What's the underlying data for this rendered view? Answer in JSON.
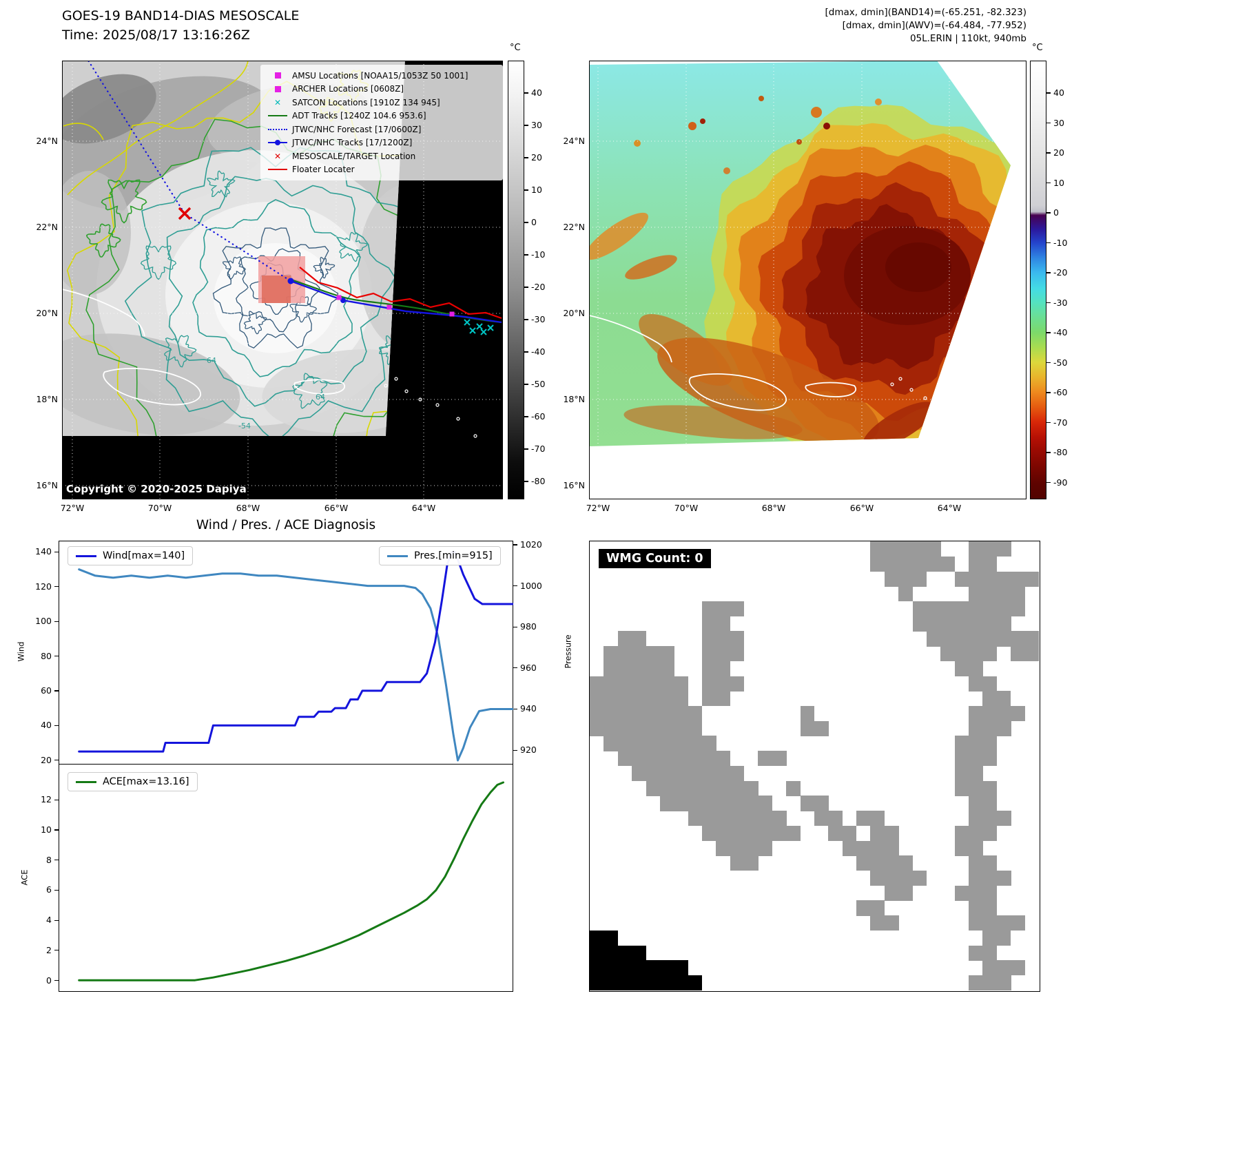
{
  "panels": {
    "band14": {
      "title": "GOES-19 BAND14-DIAS MESOSCALE",
      "time": "Time: 2025/08/17 13:16:26Z",
      "copyright": "Copyright © 2020-2025 Dapiya",
      "contour_labels": [
        "64",
        "64",
        "-54"
      ],
      "lat_ticks": [
        "24°N",
        "22°N",
        "20°N",
        "18°N",
        "16°N"
      ],
      "lon_ticks": [
        "72°W",
        "70°W",
        "68°W",
        "66°W",
        "64°W"
      ],
      "colorbar": {
        "unit": "°C",
        "ticks": [
          40,
          30,
          20,
          10,
          0,
          -10,
          -20,
          -30,
          -40,
          -50,
          -60,
          -70,
          -80
        ]
      },
      "legend": [
        {
          "label": "AMSU Locations [NOAA15/1053Z 50 1001]",
          "marker": "square",
          "color": "#e520e5"
        },
        {
          "label": "ARCHER Locations [0608Z]",
          "marker": "square",
          "color": "#e520e5"
        },
        {
          "label": "SATCON Locations [1910Z 134 945]",
          "marker": "x",
          "color": "#00b8b8"
        },
        {
          "label": "ADT Tracks [1240Z 104.6 953.6]",
          "marker": "line",
          "color": "#157a15"
        },
        {
          "label": "JTWC/NHC Forecast [17/0600Z]",
          "marker": "dotted",
          "color": "#1414e0"
        },
        {
          "label": "JTWC/NHC Tracks [17/1200Z]",
          "marker": "line-dot",
          "color": "#1414e0"
        },
        {
          "label": "MESOSCALE/TARGET Location",
          "marker": "x",
          "color": "#e00000"
        },
        {
          "label": "Floater Locater",
          "marker": "line",
          "color": "#e00000"
        }
      ]
    },
    "awv": {
      "header_lines": [
        "[dmax, dmin](BAND14)=(-65.251, -82.323)",
        "[dmax, dmin](AWV)=(-64.484, -77.952)",
        "05L.ERIN | 110kt, 940mb"
      ],
      "lat_ticks": [
        "24°N",
        "22°N",
        "20°N",
        "18°N",
        "16°N"
      ],
      "lon_ticks": [
        "72°W",
        "70°W",
        "68°W",
        "66°W",
        "64°W"
      ],
      "colorbar": {
        "unit": "°C",
        "ticks": [
          40,
          30,
          20,
          10,
          0,
          -10,
          -20,
          -30,
          -40,
          -50,
          -60,
          -70,
          -80,
          -90
        ]
      }
    },
    "diagnosis": {
      "title": "Wind / Pres. / ACE Diagnosis",
      "wind_axis_label": "Wind",
      "pressure_axis_label": "Pressure",
      "ace_axis_label": "ACE",
      "legend_wind": "Wind[max=140]",
      "legend_pres": "Pres.[min=915]",
      "legend_ace": "ACE[max=13.16]"
    },
    "wmg": {
      "label": "WMG Count: 0",
      "gray": "#9a9a9a",
      "black": "#000000",
      "grid_rows": [
        "....................ggggg..ggg..",
        "....................gggggg.gg...",
        ".....................ggg..gggggg",
        "......................g....gggg.",
        "........ggg............gggggggg.",
        "........gg.............ggggggg..",
        "..gg....ggg.............gggggggg",
        ".ggggg..ggg..............gggg.gg",
        ".ggggg..gg................gg....",
        "ggggggg.ggg................gg...",
        "ggggggg.gg..................gg..",
        "gggggggg.......g...........gggg.",
        "gggggggg.......gg..........ggg..",
        ".gggggggg.................ggg...",
        "..gggggggg..gg............ggg...",
        "...gggggggg...............gg....",
        "....gggggggg..g...........ggg...",
        ".....gggggggg..gg..........gg...",
        ".......ggggggg..gg.gg......ggg..",
        "........ggggggg..gg.gg....ggg...",
        ".........gggg.....gggg....gg....",
        "..........gg.......gggg....gg...",
        "....................gggg...ggg..",
        ".....................gg...ggg...",
        "...................gg......gg...",
        "....................gg.....gggg.",
        "bb..........................gg..",
        "bbbb.......................gg...",
        "bbbbbbb.....................ggg.",
        "bbbbbbbb...................ggg.."
      ]
    }
  },
  "chart_data": [
    {
      "type": "line",
      "title": "Wind / Pres. / ACE Diagnosis",
      "x_range": [
        0,
        1
      ],
      "left_axis": {
        "label": "Wind",
        "ticks": [
          140,
          120,
          100,
          80,
          60,
          40,
          20
        ],
        "lim": [
          17.5,
          146.5
        ]
      },
      "right_axis": {
        "label": "Pressure",
        "ticks": [
          1020,
          1000,
          980,
          960,
          940,
          920
        ],
        "lim": [
          913,
          1022
        ]
      },
      "series": [
        {
          "name": "Wind[max=140]",
          "axis": "left",
          "color": "#1414dc",
          "points": [
            [
              0.045,
              25
            ],
            [
              0.23,
              25
            ],
            [
              0.235,
              30
            ],
            [
              0.33,
              30
            ],
            [
              0.34,
              40
            ],
            [
              0.52,
              40
            ],
            [
              0.528,
              45
            ],
            [
              0.562,
              45
            ],
            [
              0.572,
              48
            ],
            [
              0.6,
              48
            ],
            [
              0.608,
              50
            ],
            [
              0.632,
              50
            ],
            [
              0.642,
              55
            ],
            [
              0.658,
              55
            ],
            [
              0.668,
              60
            ],
            [
              0.71,
              60
            ],
            [
              0.722,
              65
            ],
            [
              0.795,
              65
            ],
            [
              0.81,
              70
            ],
            [
              0.828,
              88
            ],
            [
              0.843,
              112
            ],
            [
              0.855,
              133
            ],
            [
              0.865,
              140
            ],
            [
              0.872,
              140
            ],
            [
              0.89,
              127
            ],
            [
              0.915,
              113
            ],
            [
              0.932,
              110
            ],
            [
              1.0,
              110
            ]
          ]
        },
        {
          "name": "Pres.[min=915]",
          "axis": "right",
          "color": "#3f87c0",
          "points": [
            [
              0.045,
              1008
            ],
            [
              0.08,
              1005
            ],
            [
              0.12,
              1004
            ],
            [
              0.16,
              1005
            ],
            [
              0.2,
              1004
            ],
            [
              0.24,
              1005
            ],
            [
              0.28,
              1004
            ],
            [
              0.32,
              1005
            ],
            [
              0.36,
              1006
            ],
            [
              0.4,
              1006
            ],
            [
              0.44,
              1005
            ],
            [
              0.48,
              1005
            ],
            [
              0.52,
              1004
            ],
            [
              0.56,
              1003
            ],
            [
              0.6,
              1002
            ],
            [
              0.64,
              1001
            ],
            [
              0.68,
              1000
            ],
            [
              0.72,
              1000
            ],
            [
              0.76,
              1000
            ],
            [
              0.785,
              999
            ],
            [
              0.8,
              996
            ],
            [
              0.818,
              989
            ],
            [
              0.835,
              975
            ],
            [
              0.852,
              952
            ],
            [
              0.868,
              928
            ],
            [
              0.878,
              915
            ],
            [
              0.89,
              921
            ],
            [
              0.905,
              931
            ],
            [
              0.925,
              939
            ],
            [
              0.95,
              940
            ],
            [
              1.0,
              940
            ]
          ]
        }
      ]
    },
    {
      "type": "line",
      "y_axis": {
        "label": "ACE",
        "ticks": [
          12,
          10,
          8,
          6,
          4,
          2,
          0
        ],
        "lim": [
          -0.75,
          14.35
        ]
      },
      "series": [
        {
          "name": "ACE[max=13.16]",
          "color": "#157a15",
          "points": [
            [
              0.045,
              0.02
            ],
            [
              0.3,
              0.02
            ],
            [
              0.34,
              0.2
            ],
            [
              0.38,
              0.45
            ],
            [
              0.42,
              0.7
            ],
            [
              0.46,
              1.0
            ],
            [
              0.5,
              1.3
            ],
            [
              0.54,
              1.65
            ],
            [
              0.58,
              2.05
            ],
            [
              0.62,
              2.5
            ],
            [
              0.66,
              3.0
            ],
            [
              0.7,
              3.6
            ],
            [
              0.73,
              4.05
            ],
            [
              0.76,
              4.5
            ],
            [
              0.79,
              5.0
            ],
            [
              0.81,
              5.4
            ],
            [
              0.83,
              6.0
            ],
            [
              0.85,
              6.9
            ],
            [
              0.87,
              8.1
            ],
            [
              0.89,
              9.4
            ],
            [
              0.91,
              10.6
            ],
            [
              0.93,
              11.7
            ],
            [
              0.95,
              12.5
            ],
            [
              0.965,
              13.0
            ],
            [
              0.978,
              13.16
            ]
          ]
        }
      ]
    }
  ]
}
